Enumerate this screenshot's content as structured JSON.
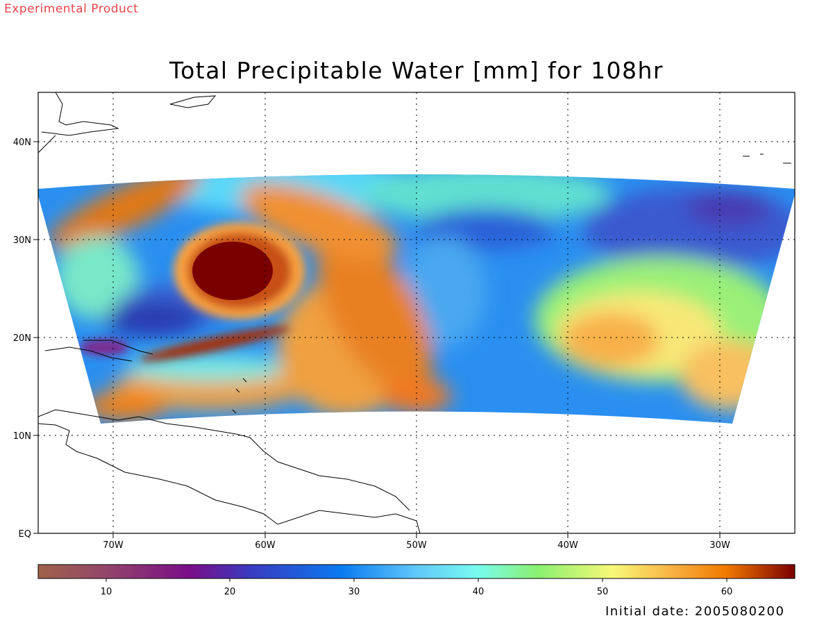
{
  "header": {
    "product_note": "Experimental Product"
  },
  "map": {
    "title": "Total Precipitable Water [mm] for 108hr",
    "lon_labels": [
      "70W",
      "60W",
      "50W",
      "40W",
      "30W"
    ],
    "lat_labels": [
      "EQ",
      "10N",
      "20N",
      "30N",
      "40N"
    ],
    "lon_range": [
      -75,
      -25
    ],
    "lat_range": [
      0,
      45
    ],
    "grid": "dotted"
  },
  "colorbar": {
    "ticks": [
      "10",
      "20",
      "30",
      "40",
      "50",
      "60"
    ],
    "range": [
      5,
      65
    ],
    "colors": [
      "#a0624a",
      "#8a2e6a",
      "#6a0a8a",
      "#3838c0",
      "#0a7af0",
      "#5ab8f8",
      "#78fbf0",
      "#8af070",
      "#f8f878",
      "#f8b040",
      "#f07800",
      "#7a0000"
    ]
  },
  "footer": {
    "initial_date": "Initial date: 2005080200"
  }
}
